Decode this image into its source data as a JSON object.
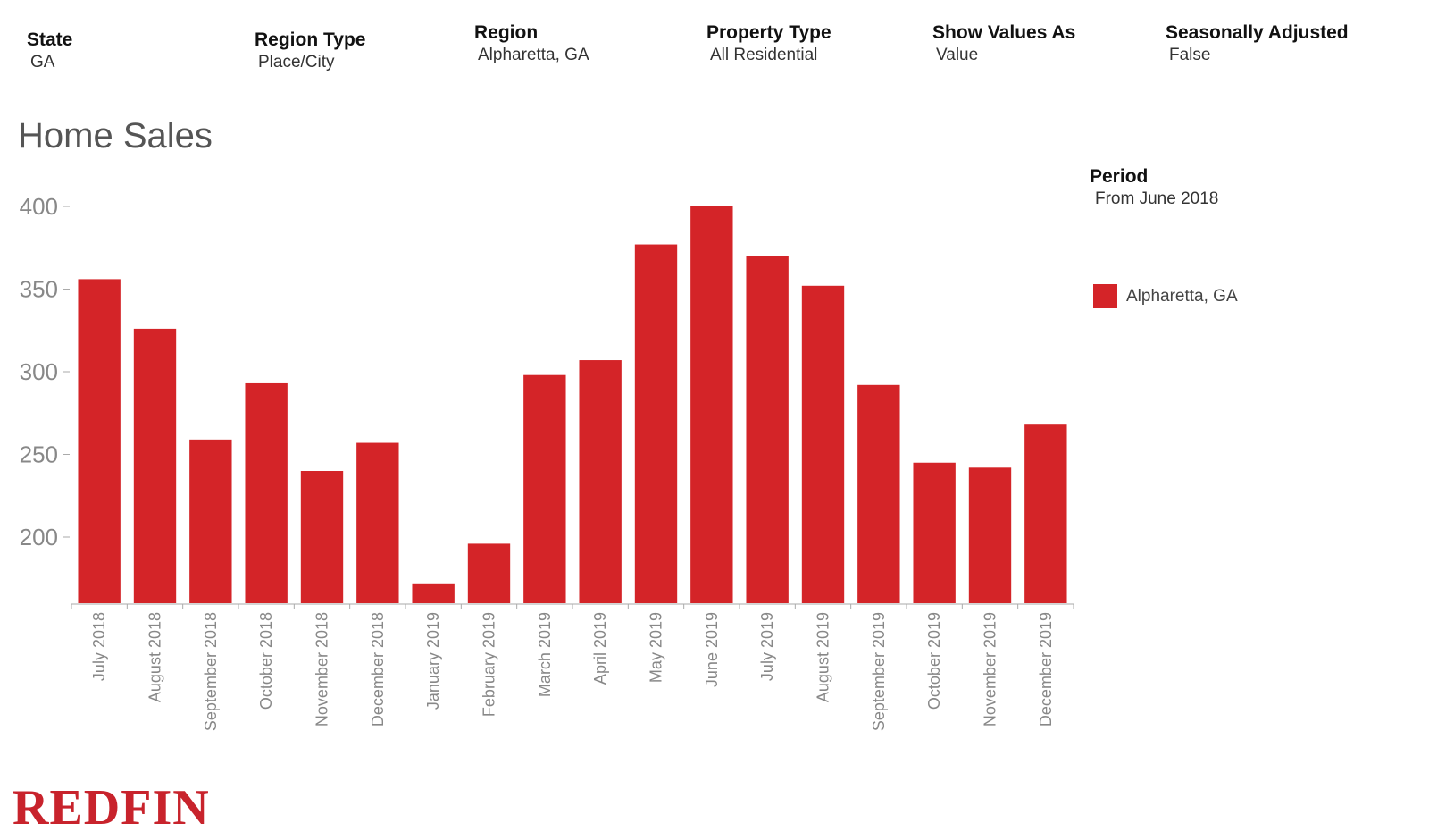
{
  "filters": {
    "state": {
      "label": "State",
      "value": "GA"
    },
    "region_type": {
      "label": "Region Type",
      "value": "Place/City"
    },
    "region": {
      "label": "Region",
      "value": "Alpharetta, GA"
    },
    "property_type": {
      "label": "Property Type",
      "value": "All Residential"
    },
    "show_values_as": {
      "label": "Show Values As",
      "value": "Value"
    },
    "seasonally_adjusted": {
      "label": "Seasonally Adjusted",
      "value": "False"
    }
  },
  "period": {
    "label": "Period",
    "value": "From June 2018"
  },
  "legend": {
    "series_name": "Alpharetta, GA"
  },
  "logo": {
    "text": "REDFIN"
  },
  "colors": {
    "bar": "#d42428",
    "logo": "#c8232c",
    "axis": "#aaaaaa",
    "tick_text": "#888888"
  },
  "chart_data": {
    "type": "bar",
    "title": "Home Sales",
    "xlabel": "",
    "ylabel": "",
    "ylim": [
      160,
      410
    ],
    "yticks": [
      200,
      250,
      300,
      350,
      400
    ],
    "grid": false,
    "legend_position": "right",
    "categories": [
      "July 2018",
      "August 2018",
      "September 2018",
      "October 2018",
      "November 2018",
      "December 2018",
      "January 2019",
      "February 2019",
      "March 2019",
      "April 2019",
      "May 2019",
      "June 2019",
      "July 2019",
      "August 2019",
      "September 2019",
      "October 2019",
      "November 2019",
      "December 2019"
    ],
    "series": [
      {
        "name": "Alpharetta, GA",
        "values": [
          356,
          326,
          259,
          293,
          240,
          257,
          172,
          196,
          298,
          307,
          377,
          400,
          370,
          352,
          292,
          245,
          242,
          268
        ]
      }
    ]
  }
}
